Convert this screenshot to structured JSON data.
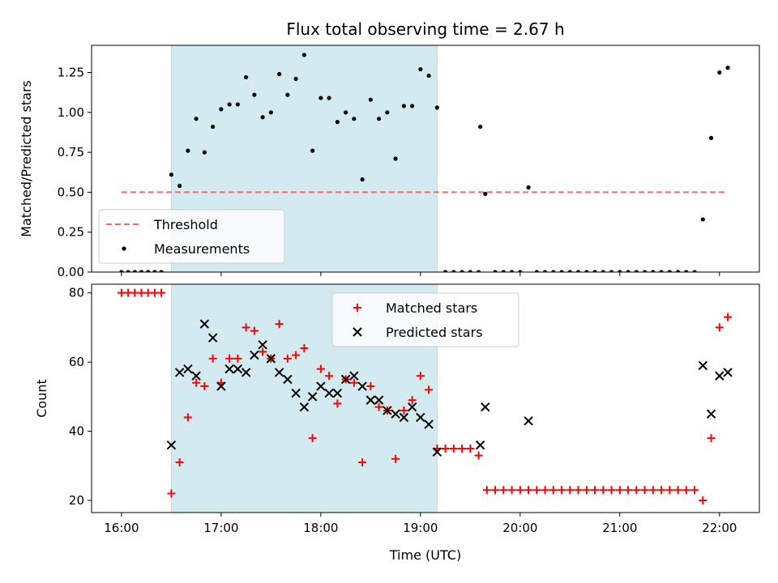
{
  "chart_data": {
    "title": "Flux total observing time = 2.67 h",
    "xlabel": "Time (UTC)",
    "x_format": "HH:MM",
    "xlim": [
      "15:42",
      "22:24"
    ],
    "x_ticks": [
      "16:00",
      "17:00",
      "18:00",
      "19:00",
      "20:00",
      "21:00",
      "22:00"
    ],
    "shaded_span": {
      "from": "16:30",
      "to": "19:10",
      "color": "#d4eaf1"
    },
    "panels": [
      {
        "type": "scatter",
        "ylabel": "Matched/Predicted stars",
        "ylim": [
          0,
          1.42
        ],
        "y_ticks": [
          0,
          0.25,
          0.5,
          0.75,
          1.0,
          1.25
        ],
        "y_tick_labels": [
          "0.00",
          "0.25",
          "0.50",
          "0.75",
          "1.00",
          "1.25"
        ],
        "legend": {
          "placement": "lower-left",
          "entries": [
            "Threshold",
            "Measurements"
          ]
        },
        "threshold": {
          "name": "Threshold",
          "value": 0.5,
          "from": "16:00",
          "to": "22:05",
          "color": "#ff6666",
          "style": "dashed"
        },
        "series": [
          {
            "name": "Measurements",
            "marker": "dot",
            "color": "#000000",
            "points": [
              [
                "16:00",
                0
              ],
              [
                "16:04",
                0
              ],
              [
                "16:08",
                0
              ],
              [
                "16:12",
                0
              ],
              [
                "16:16",
                0
              ],
              [
                "16:20",
                0
              ],
              [
                "16:24",
                0
              ],
              [
                "16:30",
                0.61
              ],
              [
                "16:35",
                0.54
              ],
              [
                "16:40",
                0.76
              ],
              [
                "16:45",
                0.96
              ],
              [
                "16:50",
                0.75
              ],
              [
                "16:55",
                0.91
              ],
              [
                "17:00",
                1.02
              ],
              [
                "17:05",
                1.05
              ],
              [
                "17:10",
                1.05
              ],
              [
                "17:15",
                1.22
              ],
              [
                "17:20",
                1.11
              ],
              [
                "17:25",
                0.97
              ],
              [
                "17:30",
                1.0
              ],
              [
                "17:35",
                1.24
              ],
              [
                "17:40",
                1.11
              ],
              [
                "17:45",
                1.21
              ],
              [
                "17:50",
                1.36
              ],
              [
                "17:55",
                0.76
              ],
              [
                "18:00",
                1.09
              ],
              [
                "18:05",
                1.09
              ],
              [
                "18:10",
                0.94
              ],
              [
                "18:15",
                1.0
              ],
              [
                "18:20",
                0.96
              ],
              [
                "18:25",
                0.58
              ],
              [
                "18:30",
                1.08
              ],
              [
                "18:35",
                0.96
              ],
              [
                "18:40",
                1.0
              ],
              [
                "18:45",
                0.71
              ],
              [
                "18:50",
                1.04
              ],
              [
                "18:55",
                1.04
              ],
              [
                "19:00",
                1.27
              ],
              [
                "19:05",
                1.23
              ],
              [
                "19:10",
                1.03
              ],
              [
                "19:15",
                0
              ],
              [
                "19:20",
                0
              ],
              [
                "19:25",
                0
              ],
              [
                "19:30",
                0
              ],
              [
                "19:35",
                0
              ],
              [
                "19:36",
                0.91
              ],
              [
                "19:39",
                0.49
              ],
              [
                "19:45",
                0
              ],
              [
                "19:50",
                0
              ],
              [
                "19:55",
                0
              ],
              [
                "20:00",
                0
              ],
              [
                "20:05",
                0.53
              ],
              [
                "20:10",
                0
              ],
              [
                "20:15",
                0
              ],
              [
                "20:20",
                0
              ],
              [
                "20:25",
                0
              ],
              [
                "20:30",
                0
              ],
              [
                "20:35",
                0
              ],
              [
                "20:40",
                0
              ],
              [
                "20:45",
                0
              ],
              [
                "20:50",
                0
              ],
              [
                "20:55",
                0
              ],
              [
                "21:00",
                0
              ],
              [
                "21:05",
                0
              ],
              [
                "21:10",
                0
              ],
              [
                "21:15",
                0
              ],
              [
                "21:20",
                0
              ],
              [
                "21:25",
                0
              ],
              [
                "21:30",
                0
              ],
              [
                "21:35",
                0
              ],
              [
                "21:40",
                0
              ],
              [
                "21:45",
                0
              ],
              [
                "21:50",
                0.33
              ],
              [
                "21:55",
                0.84
              ],
              [
                "22:00",
                1.25
              ],
              [
                "22:05",
                1.28
              ]
            ]
          }
        ]
      },
      {
        "type": "scatter",
        "ylabel": "Count",
        "ylim": [
          16.5,
          82.5
        ],
        "y_ticks": [
          20,
          40,
          60,
          80
        ],
        "y_tick_labels": [
          "20",
          "40",
          "60",
          "80"
        ],
        "legend": {
          "placement": "top-center",
          "entries": [
            "Matched stars",
            "Predicted stars"
          ]
        },
        "series": [
          {
            "name": "Matched stars",
            "marker": "plus",
            "color": "#ff0000",
            "points": [
              [
                "16:00",
                80
              ],
              [
                "16:04",
                80
              ],
              [
                "16:08",
                80
              ],
              [
                "16:12",
                80
              ],
              [
                "16:16",
                80
              ],
              [
                "16:20",
                80
              ],
              [
                "16:24",
                80
              ],
              [
                "16:30",
                22
              ],
              [
                "16:35",
                31
              ],
              [
                "16:40",
                44
              ],
              [
                "16:45",
                54
              ],
              [
                "16:50",
                53
              ],
              [
                "16:55",
                61
              ],
              [
                "17:00",
                54
              ],
              [
                "17:05",
                61
              ],
              [
                "17:10",
                61
              ],
              [
                "17:15",
                70
              ],
              [
                "17:20",
                69
              ],
              [
                "17:25",
                63
              ],
              [
                "17:30",
                61
              ],
              [
                "17:35",
                71
              ],
              [
                "17:40",
                61
              ],
              [
                "17:45",
                62
              ],
              [
                "17:50",
                64
              ],
              [
                "17:55",
                38
              ],
              [
                "18:00",
                58
              ],
              [
                "18:05",
                56
              ],
              [
                "18:10",
                48
              ],
              [
                "18:15",
                55
              ],
              [
                "18:20",
                54
              ],
              [
                "18:25",
                31
              ],
              [
                "18:30",
                53
              ],
              [
                "18:35",
                47
              ],
              [
                "18:40",
                46
              ],
              [
                "18:45",
                32
              ],
              [
                "18:50",
                46
              ],
              [
                "18:55",
                49
              ],
              [
                "19:00",
                56
              ],
              [
                "19:05",
                52
              ],
              [
                "19:10",
                35
              ],
              [
                "19:15",
                35
              ],
              [
                "19:20",
                35
              ],
              [
                "19:25",
                35
              ],
              [
                "19:30",
                35
              ],
              [
                "19:35",
                33
              ],
              [
                "19:40",
                23
              ],
              [
                "19:45",
                23
              ],
              [
                "19:50",
                23
              ],
              [
                "19:55",
                23
              ],
              [
                "20:00",
                23
              ],
              [
                "20:05",
                23
              ],
              [
                "20:10",
                23
              ],
              [
                "20:15",
                23
              ],
              [
                "20:20",
                23
              ],
              [
                "20:25",
                23
              ],
              [
                "20:30",
                23
              ],
              [
                "20:35",
                23
              ],
              [
                "20:40",
                23
              ],
              [
                "20:45",
                23
              ],
              [
                "20:50",
                23
              ],
              [
                "20:55",
                23
              ],
              [
                "21:00",
                23
              ],
              [
                "21:05",
                23
              ],
              [
                "21:10",
                23
              ],
              [
                "21:15",
                23
              ],
              [
                "21:20",
                23
              ],
              [
                "21:25",
                23
              ],
              [
                "21:30",
                23
              ],
              [
                "21:35",
                23
              ],
              [
                "21:40",
                23
              ],
              [
                "21:45",
                23
              ],
              [
                "21:50",
                20
              ],
              [
                "21:55",
                38
              ],
              [
                "22:00",
                70
              ],
              [
                "22:05",
                73
              ]
            ]
          },
          {
            "name": "Predicted stars",
            "marker": "x",
            "color": "#000000",
            "points": [
              [
                "16:30",
                36
              ],
              [
                "16:35",
                57
              ],
              [
                "16:40",
                58
              ],
              [
                "16:45",
                56
              ],
              [
                "16:50",
                71
              ],
              [
                "16:55",
                67
              ],
              [
                "17:00",
                53
              ],
              [
                "17:05",
                58
              ],
              [
                "17:10",
                58
              ],
              [
                "17:15",
                57
              ],
              [
                "17:20",
                62
              ],
              [
                "17:25",
                65
              ],
              [
                "17:30",
                61
              ],
              [
                "17:35",
                57
              ],
              [
                "17:40",
                55
              ],
              [
                "17:45",
                51
              ],
              [
                "17:50",
                47
              ],
              [
                "17:55",
                50
              ],
              [
                "18:00",
                53
              ],
              [
                "18:05",
                51
              ],
              [
                "18:10",
                51
              ],
              [
                "18:15",
                55
              ],
              [
                "18:20",
                56
              ],
              [
                "18:25",
                53
              ],
              [
                "18:30",
                49
              ],
              [
                "18:35",
                49
              ],
              [
                "18:40",
                46
              ],
              [
                "18:45",
                45
              ],
              [
                "18:50",
                44
              ],
              [
                "18:55",
                47
              ],
              [
                "19:00",
                44
              ],
              [
                "19:05",
                42
              ],
              [
                "19:10",
                34
              ],
              [
                "19:36",
                36
              ],
              [
                "19:39",
                47
              ],
              [
                "20:05",
                43
              ],
              [
                "21:50",
                59
              ],
              [
                "21:55",
                45
              ],
              [
                "22:00",
                56
              ],
              [
                "22:05",
                57
              ]
            ]
          }
        ]
      }
    ]
  }
}
